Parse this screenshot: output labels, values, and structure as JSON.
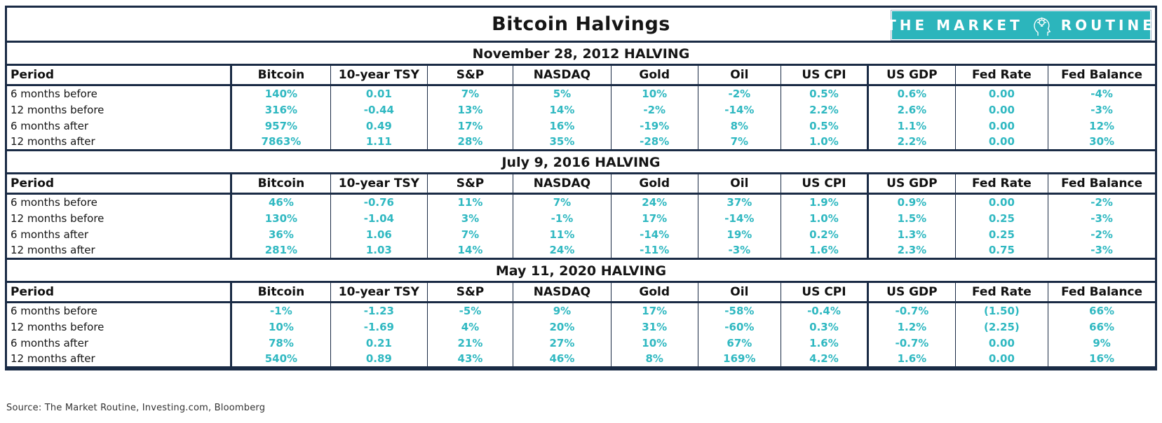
{
  "header": {
    "title": "Bitcoin Halvings",
    "logo": {
      "text_left": "THE MARKET",
      "text_right": "ROUTINE",
      "icon": "head-lightbulb-icon"
    }
  },
  "source_note": "Source: The Market Routine, Investing.com, Bloomberg",
  "colors": {
    "accent": "#2fb8c1",
    "border": "#1a2b45",
    "logo_bg": "#2cb5bc",
    "heading_text": "#151515"
  },
  "chart_data": [
    {
      "type": "table",
      "title": "November 28, 2012 HALVING",
      "columns": [
        "Period",
        "Bitcoin",
        "10-year TSY",
        "S&P",
        "NASDAQ",
        "Gold",
        "Oil",
        "US CPI",
        "US GDP",
        "Fed Rate",
        "Fed Balance"
      ],
      "rows": [
        [
          "6 months before",
          "140%",
          "0.01",
          "7%",
          "5%",
          "10%",
          "-2%",
          "0.5%",
          "0.6%",
          "0.00",
          "-4%"
        ],
        [
          "12 months before",
          "316%",
          "-0.44",
          "13%",
          "14%",
          "-2%",
          "-14%",
          "2.2%",
          "2.6%",
          "0.00",
          "-3%"
        ],
        [
          "6 months after",
          "957%",
          "0.49",
          "17%",
          "16%",
          "-19%",
          "8%",
          "0.5%",
          "1.1%",
          "0.00",
          "12%"
        ],
        [
          "12 months after",
          "7863%",
          "1.11",
          "28%",
          "35%",
          "-28%",
          "7%",
          "1.0%",
          "2.2%",
          "0.00",
          "30%"
        ]
      ]
    },
    {
      "type": "table",
      "title": "July 9, 2016 HALVING",
      "columns": [
        "Period",
        "Bitcoin",
        "10-year TSY",
        "S&P",
        "NASDAQ",
        "Gold",
        "Oil",
        "US CPI",
        "US GDP",
        "Fed Rate",
        "Fed Balance"
      ],
      "rows": [
        [
          "6 months before",
          "46%",
          "-0.76",
          "11%",
          "7%",
          "24%",
          "37%",
          "1.9%",
          "0.9%",
          "0.00",
          "-2%"
        ],
        [
          "12 months before",
          "130%",
          "-1.04",
          "3%",
          "-1%",
          "17%",
          "-14%",
          "1.0%",
          "1.5%",
          "0.25",
          "-3%"
        ],
        [
          "6 months after",
          "36%",
          "1.06",
          "7%",
          "11%",
          "-14%",
          "19%",
          "0.2%",
          "1.3%",
          "0.25",
          "-2%"
        ],
        [
          "12 months after",
          "281%",
          "1.03",
          "14%",
          "24%",
          "-11%",
          "-3%",
          "1.6%",
          "2.3%",
          "0.75",
          "-3%"
        ]
      ]
    },
    {
      "type": "table",
      "title": "May 11, 2020 HALVING",
      "columns": [
        "Period",
        "Bitcoin",
        "10-year TSY",
        "S&P",
        "NASDAQ",
        "Gold",
        "Oil",
        "US CPI",
        "US GDP",
        "Fed Rate",
        "Fed Balance"
      ],
      "rows": [
        [
          "6 months before",
          "-1%",
          "-1.23",
          "-5%",
          "9%",
          "17%",
          "-58%",
          "-0.4%",
          "-0.7%",
          "(1.50)",
          "66%"
        ],
        [
          "12 months before",
          "10%",
          "-1.69",
          "4%",
          "20%",
          "31%",
          "-60%",
          "0.3%",
          "1.2%",
          "(2.25)",
          "66%"
        ],
        [
          "6 months after",
          "78%",
          "0.21",
          "21%",
          "27%",
          "10%",
          "67%",
          "1.6%",
          "-0.7%",
          "0.00",
          "9%"
        ],
        [
          "12 months after",
          "540%",
          "0.89",
          "43%",
          "46%",
          "8%",
          "169%",
          "4.2%",
          "1.6%",
          "0.00",
          "16%"
        ]
      ]
    }
  ]
}
